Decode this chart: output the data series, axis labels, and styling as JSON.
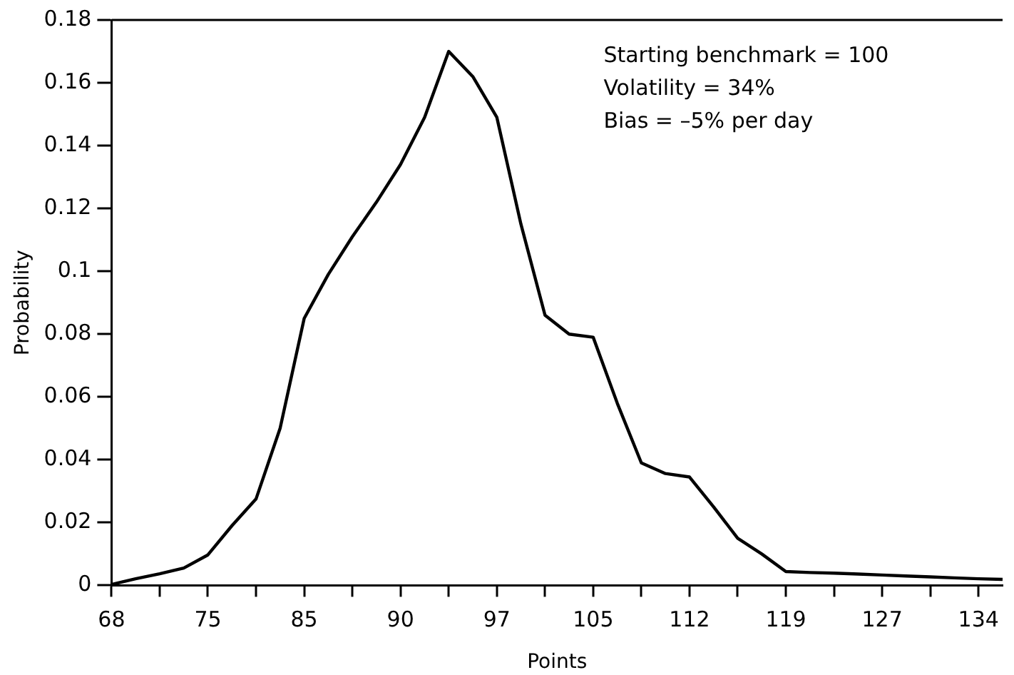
{
  "chart_data": {
    "type": "line",
    "xlabel": "Points",
    "ylabel": "Probability",
    "categories": [
      "68",
      null,
      null,
      null,
      "75",
      null,
      null,
      null,
      "85",
      null,
      null,
      null,
      "90",
      null,
      null,
      null,
      "97",
      null,
      null,
      null,
      "105",
      null,
      null,
      null,
      "112",
      null,
      null,
      null,
      "119",
      null,
      null,
      null,
      "127",
      null,
      null,
      null,
      "134",
      null
    ],
    "series": [
      {
        "color": "#000000",
        "values": [
          0.0003,
          0.0021,
          0.0037,
          0.0055,
          0.0097,
          0.019,
          0.0275,
          0.05,
          0.085,
          0.099,
          0.111,
          0.122,
          0.134,
          0.149,
          0.17,
          0.162,
          0.149,
          0.115,
          0.086,
          0.08,
          0.079,
          0.058,
          0.039,
          0.0356,
          0.0345,
          0.025,
          0.015,
          0.01,
          0.0044,
          0.0041,
          0.0039,
          0.0036,
          0.0033,
          0.003,
          0.0027,
          0.0024,
          0.0021,
          0.0019
        ]
      }
    ],
    "ylim": [
      0,
      0.18
    ],
    "yticks": [
      0,
      0.02,
      0.04,
      0.06,
      0.08,
      0.1,
      0.12,
      0.14,
      0.16,
      0.18
    ],
    "grid": false,
    "legend": false,
    "marker": "none",
    "line_style": "solid",
    "annotations": [
      "Starting benchmark = 100",
      "Volatility = 34%",
      "Bias = –5% per day"
    ]
  }
}
